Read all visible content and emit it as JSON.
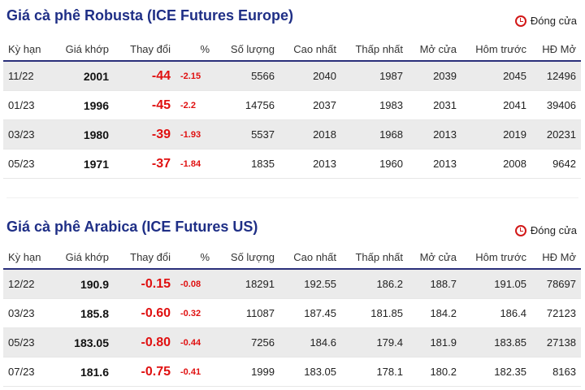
{
  "robusta": {
    "title": "Giá cà phê Robusta (ICE Futures Europe)",
    "status": "Đóng cửa",
    "headers": [
      "Kỳ hạn",
      "Giá khớp",
      "Thay đổi",
      "%",
      "Số lượng",
      "Cao nhất",
      "Thấp nhất",
      "Mở cửa",
      "Hôm trước",
      "HĐ Mở"
    ],
    "rows": [
      [
        "11/22",
        "2001",
        "-44",
        "-2.15",
        "5566",
        "2040",
        "1987",
        "2039",
        "2045",
        "12496"
      ],
      [
        "01/23",
        "1996",
        "-45",
        "-2.2",
        "14756",
        "2037",
        "1983",
        "2031",
        "2041",
        "39406"
      ],
      [
        "03/23",
        "1980",
        "-39",
        "-1.93",
        "5537",
        "2018",
        "1968",
        "2013",
        "2019",
        "20231"
      ],
      [
        "05/23",
        "1971",
        "-37",
        "-1.84",
        "1835",
        "2013",
        "1960",
        "2013",
        "2008",
        "9642"
      ]
    ]
  },
  "arabica": {
    "title": "Giá cà phê Arabica (ICE Futures US)",
    "status": "Đóng cửa",
    "headers": [
      "Kỳ hạn",
      "Giá khớp",
      "Thay đổi",
      "%",
      "Số lượng",
      "Cao nhất",
      "Thấp nhất",
      "Mở cửa",
      "Hôm trước",
      "HĐ Mở"
    ],
    "rows": [
      [
        "12/22",
        "190.9",
        "-0.15",
        "-0.08",
        "18291",
        "192.55",
        "186.2",
        "188.7",
        "191.05",
        "78697"
      ],
      [
        "03/23",
        "185.8",
        "-0.60",
        "-0.32",
        "11087",
        "187.45",
        "181.85",
        "184.2",
        "186.4",
        "72123"
      ],
      [
        "05/23",
        "183.05",
        "-0.80",
        "-0.44",
        "7256",
        "184.6",
        "179.4",
        "181.9",
        "183.85",
        "27138"
      ],
      [
        "07/23",
        "181.6",
        "-0.75",
        "-0.41",
        "1999",
        "183.05",
        "178.1",
        "180.2",
        "182.35",
        "8163"
      ]
    ]
  },
  "colors": {
    "title": "#1f2f86",
    "negative": "#e01010",
    "header_rule": "#2a2f7a",
    "row_stripe": "#ebebeb",
    "clock_icon": "#d21818"
  }
}
